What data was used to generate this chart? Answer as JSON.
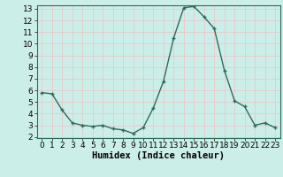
{
  "x": [
    0,
    1,
    2,
    3,
    4,
    5,
    6,
    7,
    8,
    9,
    10,
    11,
    12,
    13,
    14,
    15,
    16,
    17,
    18,
    19,
    20,
    21,
    22,
    23
  ],
  "y": [
    5.8,
    5.7,
    4.3,
    3.2,
    3.0,
    2.9,
    3.0,
    2.7,
    2.6,
    2.3,
    2.8,
    4.5,
    6.8,
    10.5,
    13.1,
    13.2,
    12.3,
    11.3,
    7.7,
    5.1,
    4.6,
    3.0,
    3.2,
    2.8
  ],
  "xlabel": "Humidex (Indice chaleur)",
  "ylim": [
    2,
    13
  ],
  "xlim": [
    -0.5,
    23.5
  ],
  "yticks": [
    2,
    3,
    4,
    5,
    6,
    7,
    8,
    9,
    10,
    11,
    12,
    13
  ],
  "xticks": [
    0,
    1,
    2,
    3,
    4,
    5,
    6,
    7,
    8,
    9,
    10,
    11,
    12,
    13,
    14,
    15,
    16,
    17,
    18,
    19,
    20,
    21,
    22,
    23
  ],
  "xtick_labels": [
    "0",
    "1",
    "2",
    "3",
    "4",
    "5",
    "6",
    "7",
    "8",
    "9",
    "10",
    "11",
    "12",
    "13",
    "14",
    "15",
    "16",
    "17",
    "18",
    "19",
    "20",
    "21",
    "22",
    "23"
  ],
  "line_color": "#2d6b5e",
  "marker_color": "#2d6b5e",
  "bg_color": "#cceee8",
  "grid_color": "#e8c8c8",
  "xlabel_fontsize": 7.5,
  "tick_fontsize": 6.5
}
